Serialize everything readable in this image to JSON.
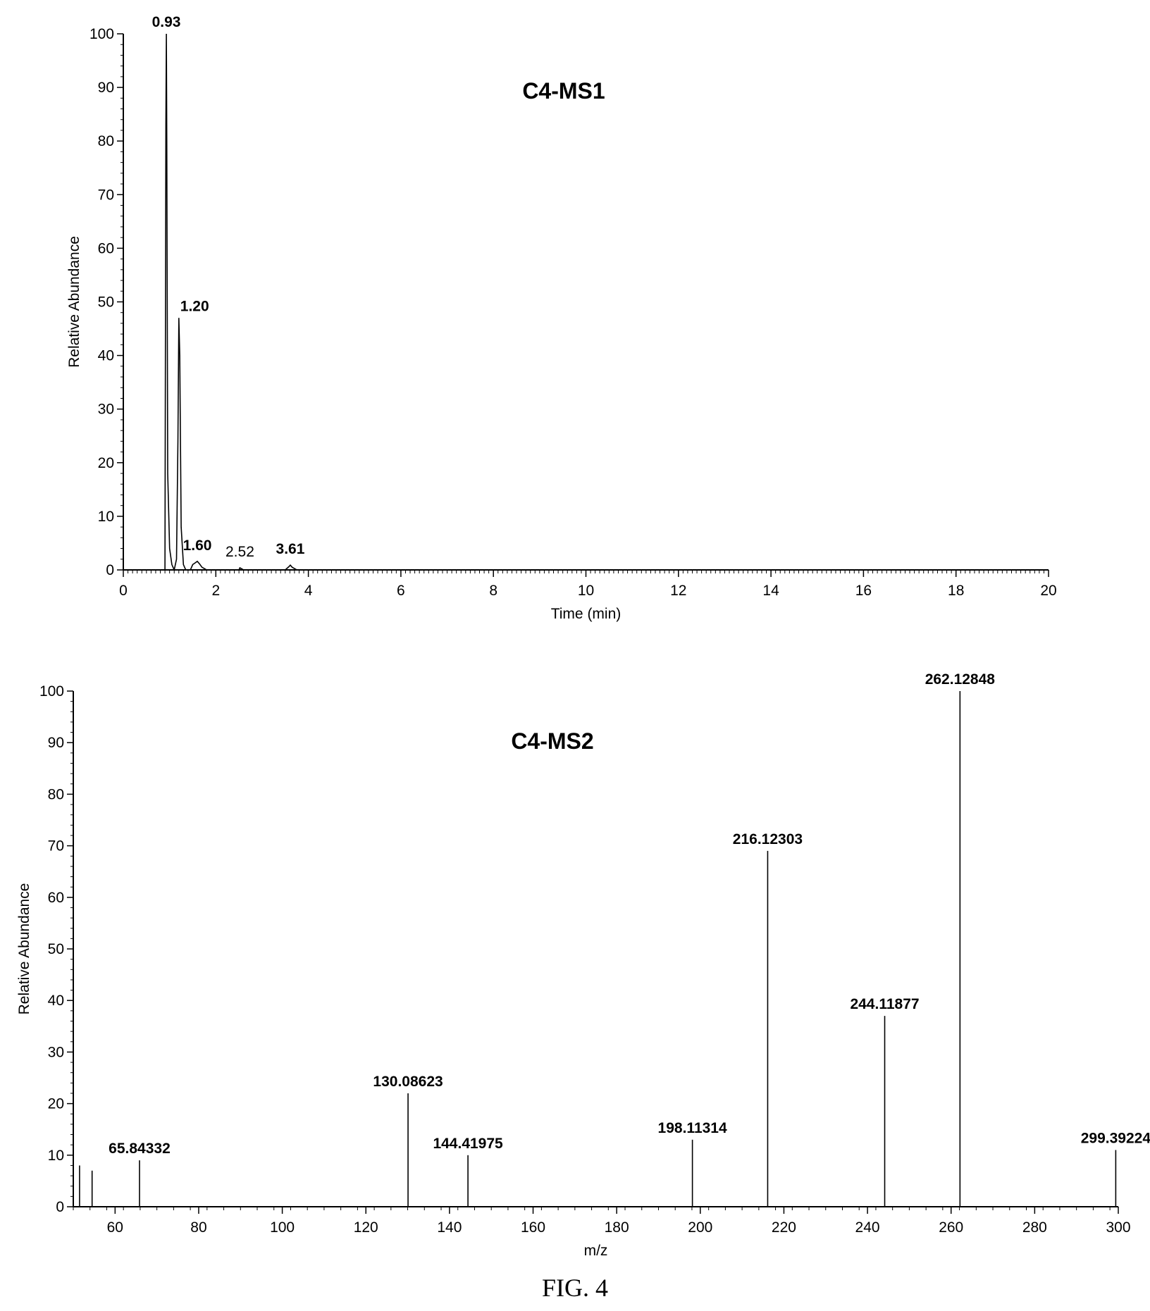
{
  "caption": "FIG. 4",
  "chart_data": [
    {
      "type": "line",
      "title": "C4-MS1",
      "xlabel": "Time (min)",
      "ylabel": "Relative Abundance",
      "xlim": [
        0,
        20
      ],
      "ylim": [
        0,
        100
      ],
      "x_ticks": [
        0,
        2,
        4,
        6,
        8,
        10,
        12,
        14,
        16,
        18,
        20
      ],
      "y_ticks": [
        0,
        10,
        20,
        30,
        40,
        50,
        60,
        70,
        80,
        90,
        100
      ],
      "x": [
        0,
        0.85,
        0.9,
        0.92,
        0.93,
        0.94,
        0.96,
        1.0,
        1.05,
        1.1,
        1.15,
        1.18,
        1.2,
        1.22,
        1.25,
        1.3,
        1.35,
        1.45,
        1.5,
        1.55,
        1.6,
        1.65,
        1.7,
        1.8,
        2.5,
        2.52,
        2.6,
        3.5,
        3.58,
        3.61,
        3.65,
        3.75,
        20
      ],
      "y": [
        0,
        0,
        0,
        83,
        100,
        80,
        18,
        4,
        1,
        0,
        2,
        24,
        47,
        40,
        8,
        1,
        0,
        0,
        1,
        1.3,
        1.6,
        1.1,
        0.5,
        0,
        0,
        0.4,
        0,
        0,
        0.6,
        0.9,
        0.5,
        0,
        0
      ],
      "peaks": [
        {
          "x": 0.93,
          "y": 100,
          "label": "0.93"
        },
        {
          "x": 1.2,
          "y": 47,
          "label": "1.20"
        },
        {
          "x": 1.6,
          "y": 1.6,
          "label": "1.60"
        },
        {
          "x": 2.52,
          "y": 0.4,
          "label": "2.52"
        },
        {
          "x": 3.61,
          "y": 0.9,
          "label": "3.61"
        }
      ]
    },
    {
      "type": "bar",
      "title": "C4-MS2",
      "xlabel": "m/z",
      "ylabel": "Relative Abundance",
      "xlim": [
        50,
        300
      ],
      "ylim": [
        0,
        100
      ],
      "x_ticks": [
        60,
        80,
        100,
        120,
        140,
        160,
        180,
        200,
        220,
        240,
        260,
        280,
        300
      ],
      "y_ticks": [
        0,
        10,
        20,
        30,
        40,
        50,
        60,
        70,
        80,
        90,
        100
      ],
      "x": [
        51.5,
        54.5,
        65.84332,
        130.08623,
        144.41975,
        198.11314,
        216.12303,
        244.11877,
        262.12848,
        299.39224
      ],
      "y": [
        8,
        7,
        9,
        22,
        10,
        13,
        69,
        37,
        100,
        11
      ],
      "labels": [
        "",
        "",
        "65.84332",
        "130.08623",
        "144.41975",
        "198.11314",
        "216.12303",
        "244.11877",
        "262.12848",
        "299.39224"
      ]
    }
  ]
}
